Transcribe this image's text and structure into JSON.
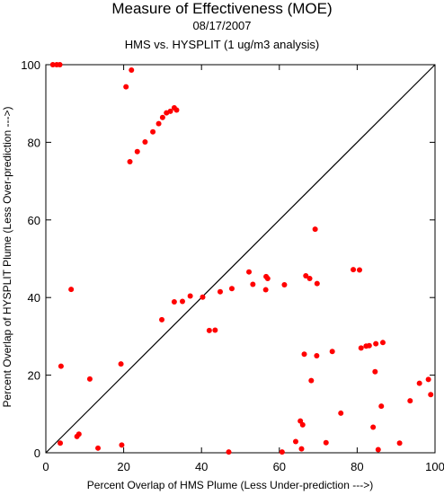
{
  "chart_data": {
    "type": "scatter",
    "title": "Measure of Effectiveness (MOE)",
    "subtitle": "08/17/2007",
    "subtitle2": "HMS vs. HYSPLIT  (1 ug/m3 analysis)",
    "xlabel": "Percent Overlap of HMS Plume (Less Under-prediction --->)",
    "ylabel": "Percent Overlap of HYSPLIT Plume (Less Over-prediction --->)",
    "xlim": [
      0,
      100
    ],
    "ylim": [
      0,
      100
    ],
    "xticks": [
      "0",
      "20",
      "40",
      "60",
      "80",
      "100"
    ],
    "yticks": [
      "0",
      "20",
      "40",
      "60",
      "80",
      "100"
    ],
    "grid": false,
    "diagonal": true,
    "point_color": "#ff0000",
    "points": [
      [
        1.8,
        100
      ],
      [
        2.8,
        100
      ],
      [
        3.6,
        100
      ],
      [
        20.6,
        94.3
      ],
      [
        22.0,
        98.6
      ],
      [
        21.6,
        75.0
      ],
      [
        23.5,
        77.6
      ],
      [
        25.5,
        80.1
      ],
      [
        27.5,
        82.7
      ],
      [
        29.0,
        84.8
      ],
      [
        30.0,
        86.4
      ],
      [
        31.0,
        87.6
      ],
      [
        32.0,
        88.0
      ],
      [
        33.0,
        88.9
      ],
      [
        33.6,
        88.3
      ],
      [
        6.5,
        42.1
      ],
      [
        3.9,
        22.3
      ],
      [
        11.3,
        19.0
      ],
      [
        3.7,
        2.5
      ],
      [
        8.0,
        4.2
      ],
      [
        8.5,
        4.8
      ],
      [
        13.4,
        1.2
      ],
      [
        19.5,
        2.0
      ],
      [
        19.3,
        22.9
      ],
      [
        29.8,
        34.3
      ],
      [
        33.0,
        38.9
      ],
      [
        35.1,
        39.0
      ],
      [
        37.1,
        40.4
      ],
      [
        40.3,
        40.1
      ],
      [
        42.0,
        31.5
      ],
      [
        43.5,
        31.6
      ],
      [
        44.8,
        41.5
      ],
      [
        47.8,
        42.3
      ],
      [
        47.0,
        0.2
      ],
      [
        52.2,
        46.6
      ],
      [
        53.2,
        43.4
      ],
      [
        56.5,
        42.0
      ],
      [
        56.6,
        45.4
      ],
      [
        57.0,
        44.9
      ],
      [
        61.3,
        43.3
      ],
      [
        60.7,
        0.2
      ],
      [
        64.2,
        2.9
      ],
      [
        65.4,
        8.2
      ],
      [
        66.0,
        7.2
      ],
      [
        65.7,
        1.0
      ],
      [
        66.4,
        25.4
      ],
      [
        66.8,
        45.6
      ],
      [
        67.8,
        44.9
      ],
      [
        68.2,
        18.6
      ],
      [
        69.2,
        57.6
      ],
      [
        69.6,
        25.0
      ],
      [
        69.7,
        43.6
      ],
      [
        72.0,
        2.6
      ],
      [
        73.6,
        26.1
      ],
      [
        75.8,
        10.2
      ],
      [
        79.0,
        47.2
      ],
      [
        80.6,
        47.1
      ],
      [
        81.0,
        27.0
      ],
      [
        82.3,
        27.5
      ],
      [
        83.1,
        27.6
      ],
      [
        84.1,
        6.6
      ],
      [
        84.8,
        28.1
      ],
      [
        84.6,
        20.9
      ],
      [
        85.4,
        0.8
      ],
      [
        86.2,
        12.0
      ],
      [
        86.6,
        28.4
      ],
      [
        90.9,
        2.5
      ],
      [
        93.6,
        13.4
      ],
      [
        96.0,
        17.9
      ],
      [
        98.3,
        18.9
      ],
      [
        98.9,
        15.0
      ]
    ]
  }
}
